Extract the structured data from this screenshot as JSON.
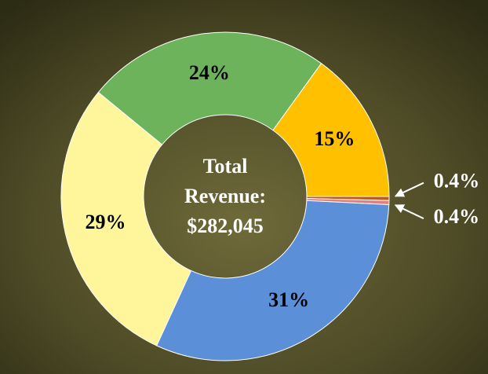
{
  "chart_data": {
    "type": "donut",
    "values": [
      24,
      15,
      0.4,
      0.4,
      31,
      29
    ],
    "value_labels": [
      "24%",
      "15%",
      "0.4%",
      "0.4%",
      "31%",
      "29%"
    ],
    "colors": [
      "#6cb35c",
      "#ffc000",
      "#c55a11",
      "#e08080",
      "#5b8fd8",
      "#fff59a"
    ],
    "center_text": [
      "Total",
      "Revenue:",
      "$282,045"
    ]
  }
}
